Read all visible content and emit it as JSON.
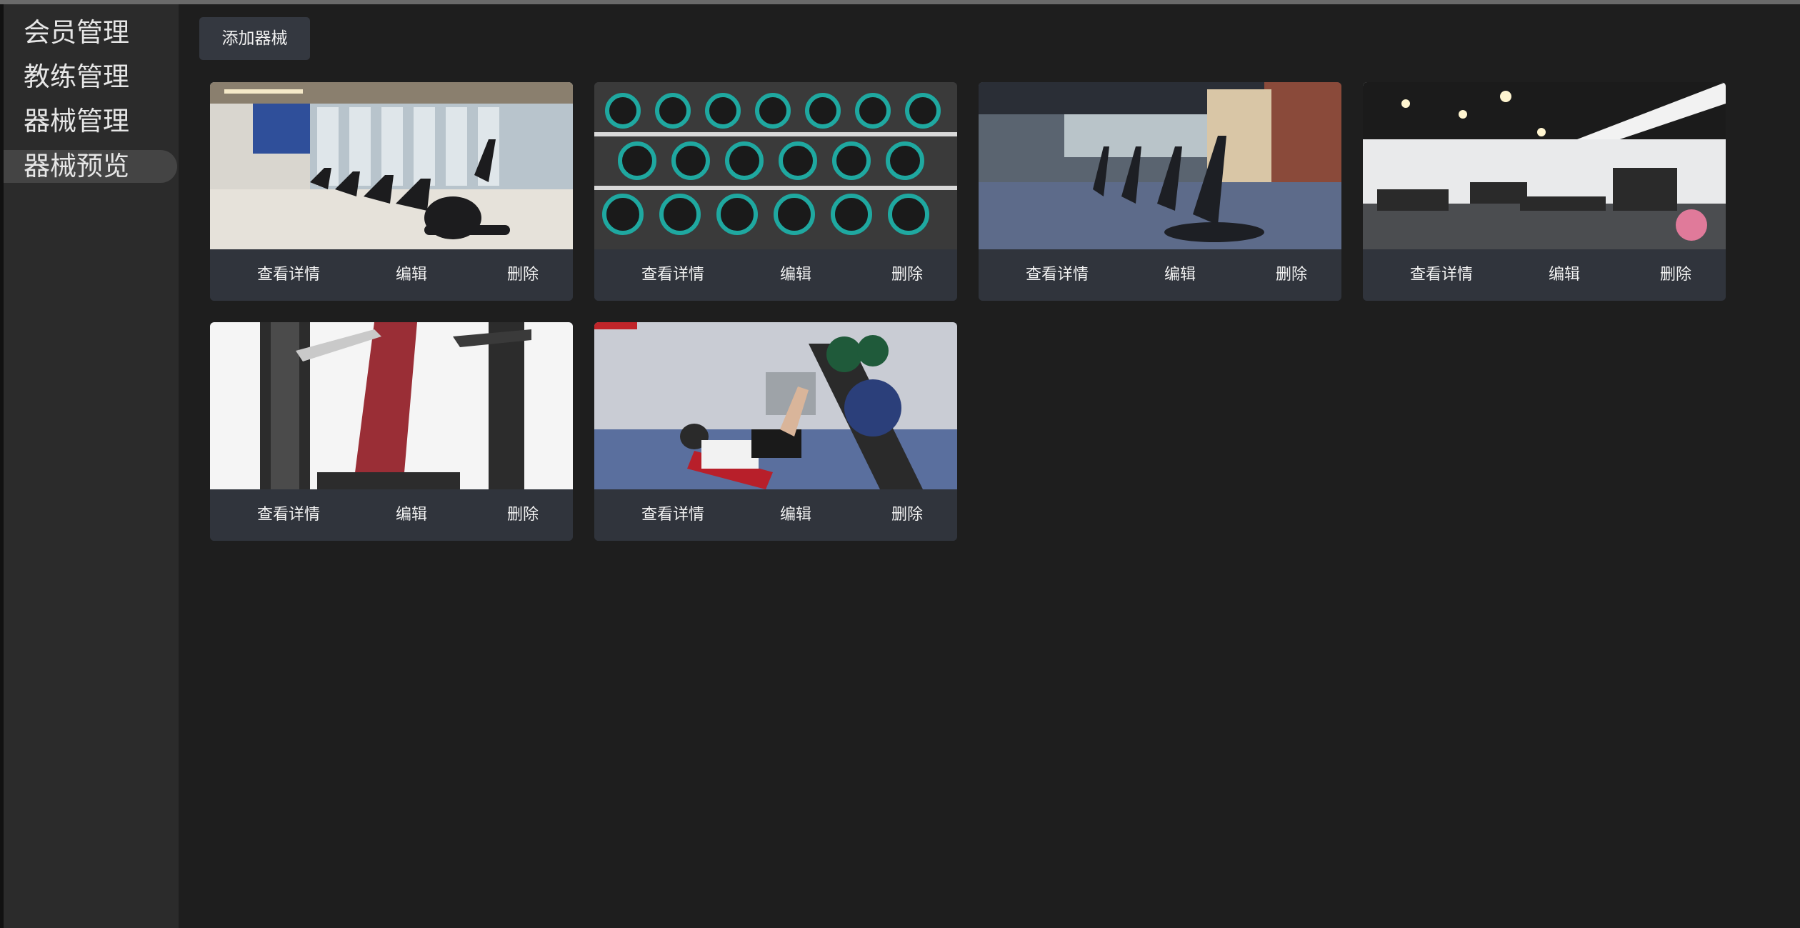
{
  "sidebar": {
    "items": [
      {
        "label": "会员管理"
      },
      {
        "label": "教练管理"
      },
      {
        "label": "器械管理"
      },
      {
        "label": "器械预览"
      }
    ],
    "active_index": 3
  },
  "toolbar": {
    "add_label": "添加器械"
  },
  "cards": [
    {
      "image": "exercise-bikes-photo",
      "view_label": "查看详情",
      "edit_label": "编辑",
      "delete_label": "删除"
    },
    {
      "image": "dumbbell-rack-photo",
      "view_label": "查看详情",
      "edit_label": "编辑",
      "delete_label": "删除"
    },
    {
      "image": "elliptical-machines-photo",
      "view_label": "查看详情",
      "edit_label": "编辑",
      "delete_label": "删除"
    },
    {
      "image": "gym-interior-photo",
      "view_label": "查看详情",
      "edit_label": "编辑",
      "delete_label": "删除"
    },
    {
      "image": "chest-press-machine-photo",
      "view_label": "查看详情",
      "edit_label": "编辑",
      "delete_label": "删除"
    },
    {
      "image": "leg-press-photo",
      "view_label": "查看详情",
      "edit_label": "编辑",
      "delete_label": "删除"
    }
  ],
  "colors": {
    "background": "#1e1e1e",
    "sidebar": "#2b2b2b",
    "card_bar": "#30343c",
    "button": "#343840"
  }
}
